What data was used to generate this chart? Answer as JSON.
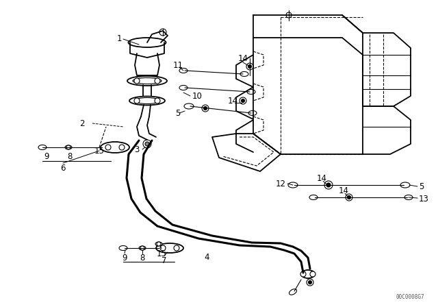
{
  "bg_color": "#ffffff",
  "line_color": "#000000",
  "watermark": "00C0008G7",
  "fig_w": 6.4,
  "fig_h": 4.48,
  "dpi": 100
}
